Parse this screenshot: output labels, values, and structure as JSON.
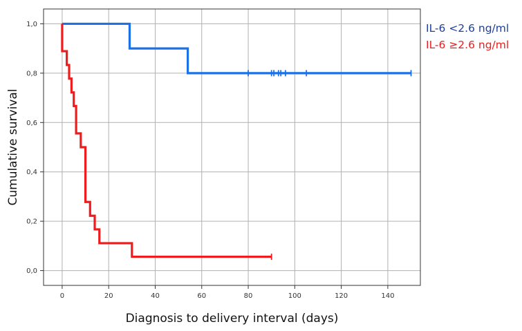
{
  "chart_data": {
    "type": "line",
    "subtype": "kaplan-meier-step",
    "title": "",
    "xlabel": "Diagnosis to delivery interval (days)",
    "ylabel": "Cumulative survival",
    "xlim": [
      -8,
      154
    ],
    "ylim": [
      -0.06,
      1.06
    ],
    "x_ticks": [
      0,
      20,
      40,
      60,
      80,
      100,
      120,
      140
    ],
    "y_ticks": [
      0.0,
      0.2,
      0.4,
      0.6,
      0.8,
      1.0
    ],
    "y_tick_labels": [
      "0,0",
      "0,2",
      "0,4",
      "0,6",
      "0,8",
      "1,0"
    ],
    "grid": true,
    "legend_position": "right",
    "series": [
      {
        "name": "IL-6 <2.6 ng/ml",
        "color": "#1a72e6",
        "legend_color": "#1c3f99",
        "steps": [
          [
            0,
            1.0
          ],
          [
            29,
            0.9
          ],
          [
            54,
            0.8
          ]
        ],
        "end_x": 150,
        "censored": [
          80,
          90,
          91,
          93,
          94,
          96,
          105,
          150
        ]
      },
      {
        "name": "IL-6 ≥2.6 ng/ml",
        "color": "#ee1c1c",
        "legend_color": "#ee1c1c",
        "steps": [
          [
            0,
            1.0
          ],
          [
            0,
            0.889
          ],
          [
            2,
            0.833
          ],
          [
            3,
            0.778
          ],
          [
            4,
            0.722
          ],
          [
            5,
            0.667
          ],
          [
            6,
            0.556
          ],
          [
            8,
            0.5
          ],
          [
            10,
            0.278
          ],
          [
            12,
            0.222
          ],
          [
            14,
            0.167
          ],
          [
            16,
            0.111
          ],
          [
            30,
            0.056
          ]
        ],
        "end_x": 90,
        "censored": [
          90
        ]
      }
    ]
  }
}
